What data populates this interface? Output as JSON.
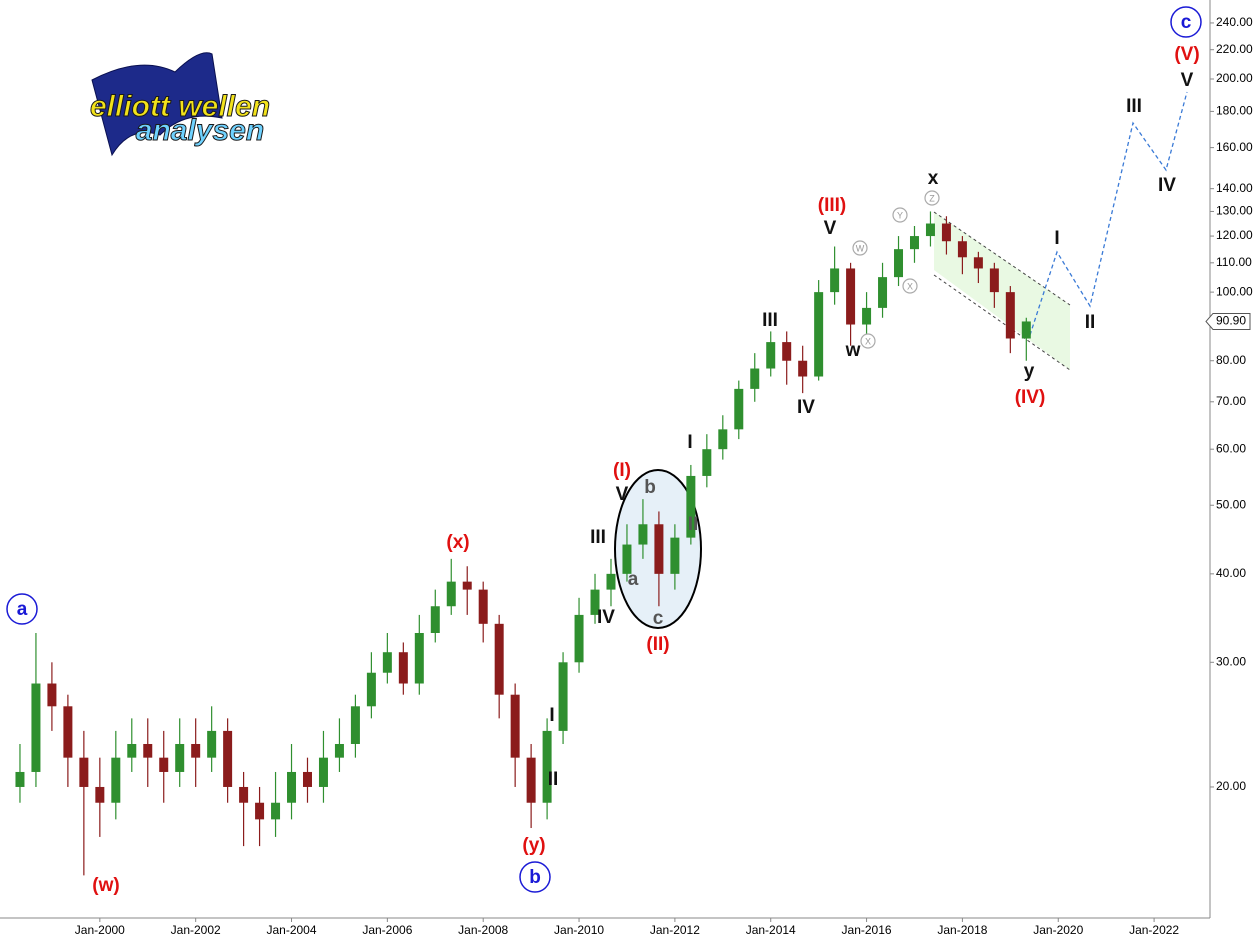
{
  "logo": {
    "line1": "elliott wellen",
    "line2": "analysen"
  },
  "chart_data": {
    "type": "candlestick",
    "log_scale": true,
    "grid": false,
    "up_color": "#2f8f2f",
    "down_color": "#8b1c1c",
    "x": [
      "1998-05",
      "1998-09",
      "1999-01",
      "1999-05",
      "1999-09",
      "2000-01",
      "2000-05",
      "2000-09",
      "2001-01",
      "2001-05",
      "2001-09",
      "2002-01",
      "2002-05",
      "2002-09",
      "2003-01",
      "2003-05",
      "2003-09",
      "2004-01",
      "2004-05",
      "2004-09",
      "2005-01",
      "2005-05",
      "2005-09",
      "2006-01",
      "2006-05",
      "2006-09",
      "2007-01",
      "2007-05",
      "2007-09",
      "2008-01",
      "2008-05",
      "2008-09",
      "2009-01",
      "2009-05",
      "2009-09",
      "2010-01",
      "2010-05",
      "2010-09",
      "2011-01",
      "2011-05",
      "2011-09",
      "2012-01",
      "2012-05",
      "2012-09",
      "2013-01",
      "2013-05",
      "2013-09",
      "2014-01",
      "2014-05",
      "2014-09",
      "2015-01",
      "2015-05",
      "2015-09",
      "2016-01",
      "2016-05",
      "2016-09",
      "2017-01",
      "2017-05",
      "2017-09",
      "2018-01",
      "2018-05",
      "2018-09",
      "2019-01",
      "2019-05"
    ],
    "open": [
      20,
      21,
      28,
      26,
      22,
      20,
      19,
      22,
      23,
      22,
      21,
      23,
      22,
      24,
      20,
      19,
      18,
      19,
      21,
      20,
      22,
      23,
      26,
      29,
      31,
      28,
      33,
      36,
      39,
      38,
      34,
      27,
      22,
      19,
      24,
      30,
      35,
      38,
      40,
      44,
      47,
      40,
      45,
      55,
      60,
      64,
      73,
      78,
      85,
      80,
      76,
      100,
      108,
      90,
      95,
      105,
      115,
      120,
      125,
      118,
      112,
      108,
      100,
      86
    ],
    "high": [
      23,
      33,
      30,
      27,
      24,
      22,
      24,
      25,
      25,
      24,
      25,
      25,
      26,
      25,
      21,
      20,
      21,
      23,
      22,
      24,
      25,
      27,
      31,
      33,
      32,
      35,
      38,
      42,
      41,
      39,
      35,
      28,
      23,
      25,
      31,
      37,
      40,
      42,
      47,
      51,
      49,
      47,
      57,
      63,
      67,
      75,
      82,
      88,
      88,
      84,
      104,
      116,
      110,
      100,
      110,
      120,
      124,
      130,
      128,
      120,
      114,
      110,
      102,
      92
    ],
    "low": [
      19,
      20,
      24,
      20,
      15,
      17,
      18,
      21,
      20,
      19,
      20,
      20,
      21,
      19,
      16.5,
      16.5,
      17,
      18,
      19,
      19,
      21,
      22,
      25,
      28,
      27,
      27,
      32,
      35,
      35,
      32,
      25,
      20,
      17.5,
      18,
      23,
      29,
      34,
      36,
      39,
      42,
      36,
      38,
      44,
      53,
      58,
      62,
      70,
      76,
      74,
      72,
      75,
      96,
      84,
      86,
      92,
      102,
      110,
      116,
      113,
      106,
      103,
      95,
      82,
      80
    ],
    "close": [
      21,
      28,
      26,
      22,
      20,
      19,
      22,
      23,
      22,
      21,
      23,
      22,
      24,
      20,
      19,
      18,
      19,
      21,
      20,
      22,
      23,
      26,
      29,
      31,
      28,
      33,
      36,
      39,
      38,
      34,
      27,
      22,
      19,
      24,
      30,
      35,
      38,
      40,
      44,
      47,
      40,
      45,
      55,
      60,
      64,
      73,
      78,
      85,
      80,
      76,
      100,
      108,
      90,
      95,
      105,
      115,
      120,
      125,
      118,
      112,
      108,
      100,
      86,
      90.9
    ],
    "last_price": 90.9,
    "last_price_label": "90.90",
    "xlim": [
      "1997-12",
      "2023-03"
    ],
    "xticks": [
      {
        "value": "2000-01",
        "label": "Jan-2000"
      },
      {
        "value": "2002-01",
        "label": "Jan-2002"
      },
      {
        "value": "2004-01",
        "label": "Jan-2004"
      },
      {
        "value": "2006-01",
        "label": "Jan-2006"
      },
      {
        "value": "2008-01",
        "label": "Jan-2008"
      },
      {
        "value": "2010-01",
        "label": "Jan-2010"
      },
      {
        "value": "2012-01",
        "label": "Jan-2012"
      },
      {
        "value": "2014-01",
        "label": "Jan-2014"
      },
      {
        "value": "2016-01",
        "label": "Jan-2016"
      },
      {
        "value": "2018-01",
        "label": "Jan-2018"
      },
      {
        "value": "2020-01",
        "label": "Jan-2020"
      },
      {
        "value": "2022-01",
        "label": "Jan-2022"
      }
    ],
    "ylim": [
      13.06,
      258.6
    ],
    "yticks": [
      {
        "value": 20,
        "label": "20.00"
      },
      {
        "value": 30,
        "label": "30.00"
      },
      {
        "value": 40,
        "label": "40.00"
      },
      {
        "value": 50,
        "label": "50.00"
      },
      {
        "value": 60,
        "label": "60.00"
      },
      {
        "value": 70,
        "label": "70.00"
      },
      {
        "value": 80,
        "label": "80.00"
      },
      {
        "value": 100,
        "label": "100.00"
      },
      {
        "value": 110,
        "label": "110.00"
      },
      {
        "value": 120,
        "label": "120.00"
      },
      {
        "value": 130,
        "label": "130.00"
      },
      {
        "value": 140,
        "label": "140.00"
      },
      {
        "value": 160,
        "label": "160.00"
      },
      {
        "value": 180,
        "label": "180.00"
      },
      {
        "value": 200,
        "label": "200.00"
      },
      {
        "value": 220,
        "label": "220.00"
      },
      {
        "value": 240,
        "label": "240.00"
      }
    ],
    "wave_labels": [
      {
        "text": "(w)",
        "style": "red"
      },
      {
        "text": "a",
        "style": "blue"
      },
      {
        "text": "(x)",
        "style": "red"
      },
      {
        "text": "(y)",
        "style": "red"
      },
      {
        "text": "b",
        "style": "blue"
      },
      {
        "text": "I",
        "style": "black"
      },
      {
        "text": "II",
        "style": "black"
      },
      {
        "text": "III",
        "style": "black"
      },
      {
        "text": "IV",
        "style": "black"
      },
      {
        "text": "(I)",
        "style": "red"
      },
      {
        "text": "V",
        "style": "black"
      },
      {
        "text": "b",
        "style": "gray"
      },
      {
        "text": "a",
        "style": "gray"
      },
      {
        "text": "c",
        "style": "gray"
      },
      {
        "text": "II",
        "style": "gray"
      },
      {
        "text": "(II)",
        "style": "red"
      },
      {
        "text": "I",
        "style": "black"
      },
      {
        "text": "III",
        "style": "black"
      },
      {
        "text": "IV",
        "style": "black"
      },
      {
        "text": "V",
        "style": "black"
      },
      {
        "text": "(III)",
        "style": "red"
      },
      {
        "text": "w",
        "style": "black"
      },
      {
        "text": "W",
        "style": "circled"
      },
      {
        "text": "X",
        "style": "circled"
      },
      {
        "text": "Y",
        "style": "circled"
      },
      {
        "text": "X",
        "style": "circled"
      },
      {
        "text": "Z",
        "style": "circled"
      },
      {
        "text": "x",
        "style": "black"
      },
      {
        "text": "y",
        "style": "black"
      },
      {
        "text": "(IV)",
        "style": "red"
      },
      {
        "text": "I",
        "style": "black"
      },
      {
        "text": "II",
        "style": "black"
      },
      {
        "text": "III",
        "style": "black"
      },
      {
        "text": "IV",
        "style": "black"
      },
      {
        "text": "V",
        "style": "black"
      },
      {
        "text": "(V)",
        "style": "red"
      },
      {
        "text": "c",
        "style": "blue"
      }
    ]
  }
}
